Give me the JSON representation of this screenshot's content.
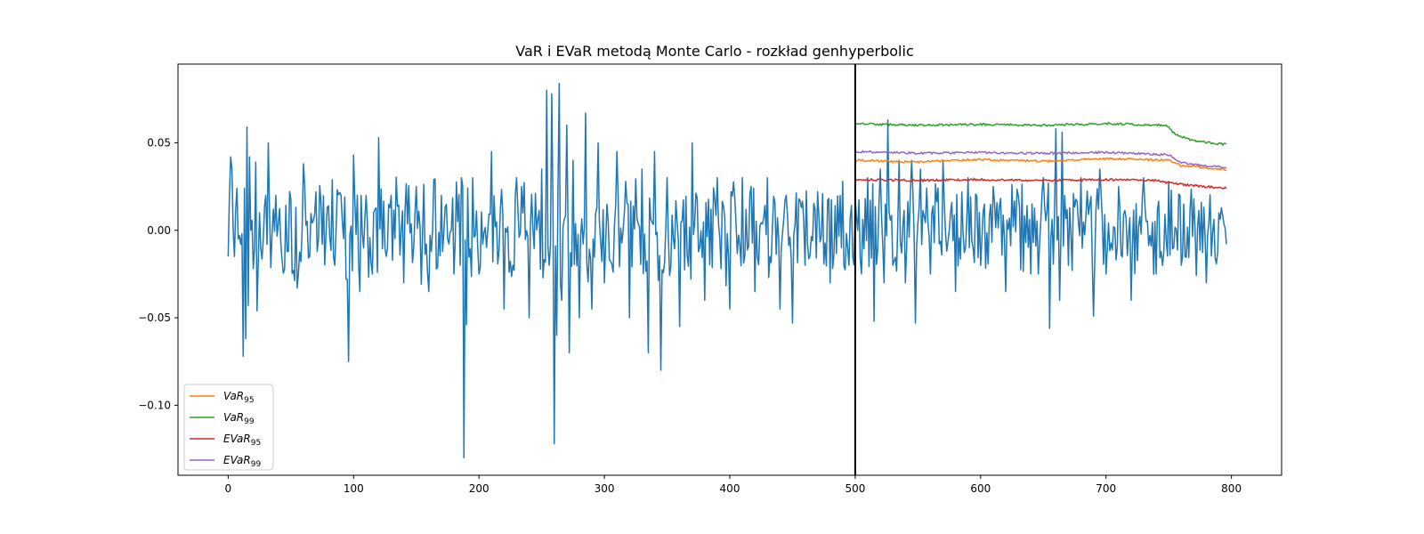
{
  "chart_data": {
    "type": "line",
    "title": "VaR i EVaR metodą Monte Carlo - rozkład genhyperbolic",
    "xlabel": "",
    "ylabel": "",
    "xlim": [
      -40,
      840
    ],
    "ylim": [
      -0.14,
      0.095
    ],
    "x_ticks": [
      0,
      100,
      200,
      300,
      400,
      500,
      600,
      700,
      800
    ],
    "y_ticks": [
      -0.1,
      -0.05,
      0.0,
      0.05
    ],
    "y_tick_labels": [
      "−0.10",
      "−0.05",
      "0.00",
      "0.05"
    ],
    "x_tick_labels": [
      "0",
      "100",
      "200",
      "300",
      "400",
      "500",
      "600",
      "700",
      "800"
    ],
    "vertical_line_x": 500,
    "grid": false,
    "legend_position": "lower-left",
    "returns_series": {
      "color": "#1f77b4",
      "x_start": 0,
      "x_end": 796,
      "keypoints": [
        [
          0,
          -0.015
        ],
        [
          1,
          0.02
        ],
        [
          2,
          0.042
        ],
        [
          3,
          0.035
        ],
        [
          4,
          0.0
        ],
        [
          5,
          -0.015
        ],
        [
          6,
          0.012
        ],
        [
          7,
          0.024
        ],
        [
          8,
          -0.005
        ],
        [
          9,
          -0.003
        ],
        [
          10,
          -0.008
        ],
        [
          11,
          -0.002
        ],
        [
          12,
          -0.072
        ],
        [
          13,
          0.024
        ],
        [
          14,
          -0.062
        ],
        [
          15,
          0.059
        ],
        [
          16,
          -0.043
        ],
        [
          17,
          0.042
        ],
        [
          18,
          0.0
        ],
        [
          20,
          -0.022
        ],
        [
          22,
          0.039
        ],
        [
          23,
          -0.046
        ],
        [
          25,
          0.01
        ],
        [
          28,
          -0.005
        ],
        [
          30,
          0.02
        ],
        [
          32,
          0.05
        ],
        [
          35,
          -0.002
        ],
        [
          38,
          0.02
        ],
        [
          40,
          0.004
        ],
        [
          45,
          -0.022
        ],
        [
          50,
          0.018
        ],
        [
          55,
          -0.033
        ],
        [
          60,
          0.038
        ],
        [
          65,
          -0.015
        ],
        [
          70,
          0.022
        ],
        [
          75,
          -0.008
        ],
        [
          80,
          0.014
        ],
        [
          85,
          -0.02
        ],
        [
          90,
          0.02
        ],
        [
          95,
          -0.028
        ],
        [
          96,
          -0.075
        ],
        [
          100,
          0.043
        ],
        [
          105,
          -0.035
        ],
        [
          110,
          0.02
        ],
        [
          115,
          -0.025
        ],
        [
          120,
          0.053
        ],
        [
          125,
          -0.01
        ],
        [
          130,
          0.02
        ],
        [
          140,
          -0.03
        ],
        [
          150,
          0.025
        ],
        [
          160,
          -0.035
        ],
        [
          170,
          0.02
        ],
        [
          180,
          -0.025
        ],
        [
          186,
          0.03
        ],
        [
          188,
          -0.13
        ],
        [
          190,
          -0.054
        ],
        [
          195,
          0.03
        ],
        [
          200,
          -0.025
        ],
        [
          210,
          0.045
        ],
        [
          220,
          -0.045
        ],
        [
          230,
          0.03
        ],
        [
          240,
          -0.05
        ],
        [
          250,
          0.035
        ],
        [
          254,
          0.08
        ],
        [
          256,
          -0.02
        ],
        [
          258,
          0.078
        ],
        [
          260,
          -0.122
        ],
        [
          262,
          -0.06
        ],
        [
          264,
          0.084
        ],
        [
          266,
          -0.04
        ],
        [
          270,
          0.06
        ],
        [
          272,
          -0.07
        ],
        [
          275,
          0.04
        ],
        [
          280,
          -0.05
        ],
        [
          285,
          0.067
        ],
        [
          290,
          -0.045
        ],
        [
          295,
          0.05
        ],
        [
          300,
          -0.03
        ],
        [
          310,
          0.045
        ],
        [
          320,
          -0.05
        ],
        [
          330,
          0.035
        ],
        [
          335,
          -0.07
        ],
        [
          340,
          0.045
        ],
        [
          345,
          -0.08
        ],
        [
          350,
          0.03
        ],
        [
          360,
          -0.055
        ],
        [
          370,
          0.05
        ],
        [
          380,
          -0.04
        ],
        [
          390,
          0.03
        ],
        [
          400,
          -0.045
        ],
        [
          410,
          0.03
        ],
        [
          420,
          -0.035
        ],
        [
          430,
          0.03
        ],
        [
          440,
          -0.045
        ],
        [
          445,
          0.02
        ],
        [
          450,
          -0.053
        ],
        [
          455,
          0.018
        ],
        [
          460,
          -0.02
        ],
        [
          470,
          0.022
        ],
        [
          480,
          -0.03
        ],
        [
          490,
          0.028
        ],
        [
          495,
          -0.02
        ],
        [
          500,
          0.018
        ],
        [
          505,
          -0.025
        ],
        [
          510,
          0.03
        ],
        [
          515,
          -0.052
        ],
        [
          520,
          0.035
        ],
        [
          523,
          -0.03
        ],
        [
          526,
          0.063
        ],
        [
          530,
          -0.02
        ],
        [
          535,
          0.04
        ],
        [
          540,
          -0.03
        ],
        [
          545,
          0.04
        ],
        [
          548,
          -0.053
        ],
        [
          552,
          0.035
        ],
        [
          560,
          -0.025
        ],
        [
          570,
          0.04
        ],
        [
          580,
          -0.035
        ],
        [
          590,
          0.03
        ],
        [
          600,
          -0.02
        ],
        [
          610,
          0.025
        ],
        [
          620,
          -0.035
        ],
        [
          630,
          0.02
        ],
        [
          640,
          -0.025
        ],
        [
          650,
          0.03
        ],
        [
          655,
          -0.056
        ],
        [
          660,
          0.058
        ],
        [
          663,
          -0.04
        ],
        [
          665,
          0.056
        ],
        [
          670,
          -0.02
        ],
        [
          680,
          0.03
        ],
        [
          690,
          -0.049
        ],
        [
          695,
          0.035
        ],
        [
          700,
          -0.025
        ],
        [
          710,
          0.025
        ],
        [
          720,
          -0.04
        ],
        [
          730,
          0.03
        ],
        [
          740,
          -0.025
        ],
        [
          750,
          0.028
        ],
        [
          760,
          -0.02
        ],
        [
          770,
          0.018
        ],
        [
          780,
          -0.03
        ],
        [
          790,
          0.01
        ],
        [
          796,
          -0.008
        ]
      ]
    },
    "series": [
      {
        "name": "VaR",
        "subscript": "95",
        "color": "#ff7f0e",
        "x_start": 500,
        "x_end": 796,
        "keypoints": [
          [
            500,
            0.04
          ],
          [
            550,
            0.039
          ],
          [
            600,
            0.0405
          ],
          [
            650,
            0.0395
          ],
          [
            700,
            0.041
          ],
          [
            750,
            0.04
          ],
          [
            760,
            0.037
          ],
          [
            770,
            0.0365
          ],
          [
            796,
            0.0345
          ]
        ]
      },
      {
        "name": "VaR",
        "subscript": "99",
        "color": "#2ca02c",
        "x_start": 500,
        "x_end": 796,
        "keypoints": [
          [
            500,
            0.061
          ],
          [
            550,
            0.06
          ],
          [
            600,
            0.0605
          ],
          [
            650,
            0.06
          ],
          [
            700,
            0.061
          ],
          [
            748,
            0.06
          ],
          [
            755,
            0.055
          ],
          [
            770,
            0.051
          ],
          [
            796,
            0.049
          ]
        ]
      },
      {
        "name": "EVaR",
        "subscript": "95",
        "color": "#d62728",
        "x_start": 500,
        "x_end": 796,
        "keypoints": [
          [
            500,
            0.029
          ],
          [
            550,
            0.0285
          ],
          [
            600,
            0.029
          ],
          [
            650,
            0.0285
          ],
          [
            700,
            0.029
          ],
          [
            740,
            0.0285
          ],
          [
            750,
            0.027
          ],
          [
            770,
            0.0255
          ],
          [
            796,
            0.024
          ]
        ]
      },
      {
        "name": "EVaR",
        "subscript": "99",
        "color": "#9467bd",
        "x_start": 500,
        "x_end": 796,
        "keypoints": [
          [
            500,
            0.045
          ],
          [
            550,
            0.044
          ],
          [
            600,
            0.0445
          ],
          [
            650,
            0.044
          ],
          [
            700,
            0.0445
          ],
          [
            750,
            0.043
          ],
          [
            760,
            0.039
          ],
          [
            775,
            0.037
          ],
          [
            796,
            0.036
          ]
        ]
      }
    ]
  }
}
